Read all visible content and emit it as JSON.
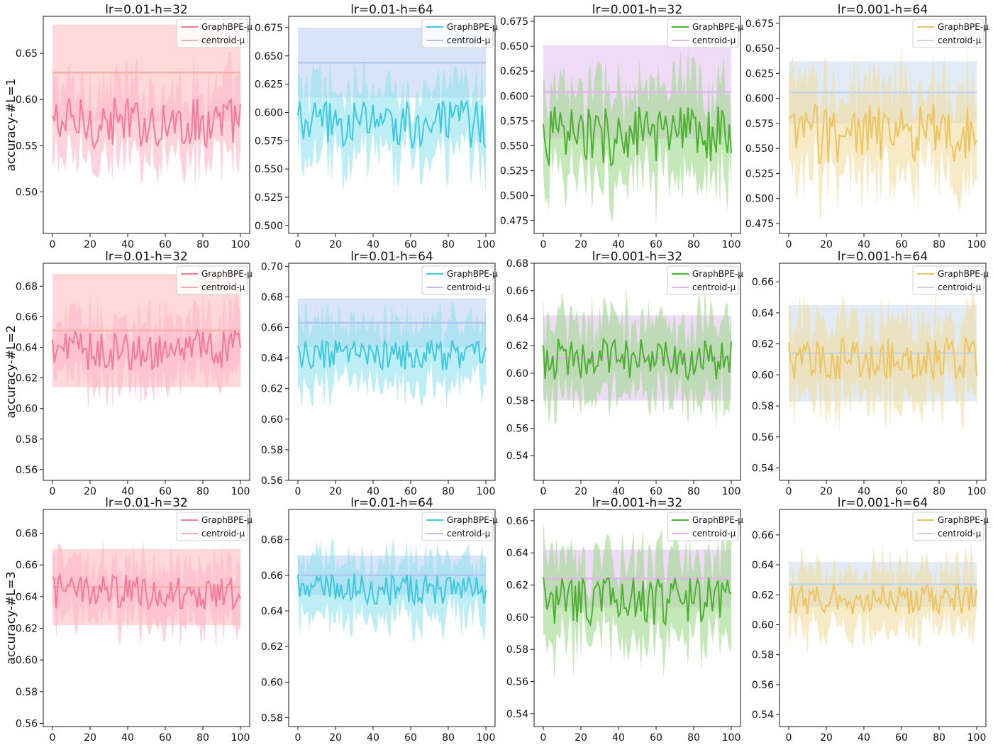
{
  "chart_data": {
    "type": "line",
    "description_rows": [
      "accuracy-#L=1",
      "accuracy-#L=2",
      "accuracy-#L=3"
    ],
    "columns": [
      "lr=0.01-h=32",
      "lr=0.01-h=64",
      "lr=0.001-h=32",
      "lr=0.001-h=64"
    ],
    "legend": [
      "GraphBPE-μ",
      "centroid-μ"
    ],
    "x_range": [
      0,
      100
    ],
    "x_ticks": [
      "0",
      "20",
      "40",
      "60",
      "80",
      "100"
    ],
    "colors": {
      "col0": {
        "line": "#f7799a",
        "band": "#ffb6c8",
        "centroid": "#f9aeae",
        "cband": "#ffc4c4"
      },
      "col1": {
        "line": "#40c8e0",
        "band": "#92e2ef",
        "centroid": "#b4c4f0",
        "cband": "#c4d6f4"
      },
      "col2": {
        "line": "#4cb030",
        "band": "#9fd98a",
        "centroid": "#e2b4ec",
        "cband": "#e6c8f2"
      },
      "col3": {
        "line": "#edc460",
        "band": "#f2dca0",
        "centroid": "#c2d6ea",
        "cband": "#cfe0f0"
      }
    },
    "panels": [
      {
        "row": 0,
        "col": 0,
        "title": "lr=0.01-h=32",
        "ylabel": "accuracy-#L=1",
        "ylim": [
          0.455,
          0.69
        ],
        "yticks": [
          "0.50",
          "0.55",
          "0.60",
          "0.65"
        ],
        "graphbpe_mean": 0.575,
        "graphbpe_amp": 0.028,
        "graphbpe_band": 0.038,
        "centroid_mean": 0.629,
        "centroid_std": 0.052
      },
      {
        "row": 0,
        "col": 1,
        "title": "lr=0.01-h=64",
        "ylabel": "",
        "ylim": [
          0.493,
          0.685
        ],
        "yticks": [
          "0.500",
          "0.525",
          "0.550",
          "0.575",
          "0.600",
          "0.625",
          "0.650",
          "0.675"
        ],
        "graphbpe_mean": 0.59,
        "graphbpe_amp": 0.022,
        "graphbpe_band": 0.03,
        "centroid_mean": 0.644,
        "centroid_std": 0.031
      },
      {
        "row": 0,
        "col": 2,
        "title": "lr=0.001-h=32",
        "ylabel": "",
        "ylim": [
          0.462,
          0.68
        ],
        "yticks": [
          "0.475",
          "0.500",
          "0.525",
          "0.550",
          "0.575",
          "0.600",
          "0.625",
          "0.650",
          "0.675"
        ],
        "graphbpe_mean": 0.56,
        "graphbpe_amp": 0.03,
        "graphbpe_band": 0.045,
        "centroid_mean": 0.604,
        "centroid_std": 0.047
      },
      {
        "row": 0,
        "col": 3,
        "title": "lr=0.001-h=64",
        "ylabel": "",
        "ylim": [
          0.465,
          0.682
        ],
        "yticks": [
          "0.475",
          "0.500",
          "0.525",
          "0.550",
          "0.575",
          "0.600",
          "0.625",
          "0.650",
          "0.675"
        ],
        "graphbpe_mean": 0.565,
        "graphbpe_amp": 0.03,
        "graphbpe_band": 0.045,
        "centroid_mean": 0.606,
        "centroid_std": 0.031
      },
      {
        "row": 1,
        "col": 0,
        "title": "lr=0.01-h=32",
        "ylabel": "accuracy-#L=2",
        "ylim": [
          0.553,
          0.695
        ],
        "yticks": [
          "0.56",
          "0.58",
          "0.60",
          "0.62",
          "0.64",
          "0.66",
          "0.68"
        ],
        "graphbpe_mean": 0.638,
        "graphbpe_amp": 0.013,
        "graphbpe_band": 0.02,
        "centroid_mean": 0.651,
        "centroid_std": 0.037
      },
      {
        "row": 1,
        "col": 1,
        "title": "lr=0.01-h=64",
        "ylabel": "",
        "ylim": [
          0.56,
          0.702
        ],
        "yticks": [
          "0.56",
          "0.58",
          "0.60",
          "0.62",
          "0.64",
          "0.66",
          "0.68",
          "0.70"
        ],
        "graphbpe_mean": 0.642,
        "graphbpe_amp": 0.01,
        "graphbpe_band": 0.02,
        "centroid_mean": 0.663,
        "centroid_std": 0.016
      },
      {
        "row": 1,
        "col": 2,
        "title": "lr=0.001-h=32",
        "ylabel": "",
        "ylim": [
          0.522,
          0.68
        ],
        "yticks": [
          "0.54",
          "0.56",
          "0.58",
          "0.60",
          "0.62",
          "0.64",
          "0.66",
          "0.68"
        ],
        "graphbpe_mean": 0.61,
        "graphbpe_amp": 0.015,
        "graphbpe_band": 0.028,
        "centroid_mean": 0.611,
        "centroid_std": 0.031
      },
      {
        "row": 1,
        "col": 3,
        "title": "lr=0.001-h=64",
        "ylabel": "",
        "ylim": [
          0.532,
          0.672
        ],
        "yticks": [
          "0.54",
          "0.56",
          "0.58",
          "0.60",
          "0.62",
          "0.64",
          "0.66"
        ],
        "graphbpe_mean": 0.61,
        "graphbpe_amp": 0.014,
        "graphbpe_band": 0.025,
        "centroid_mean": 0.614,
        "centroid_std": 0.031
      },
      {
        "row": 2,
        "col": 0,
        "title": "lr=0.01-h=32",
        "ylabel": "accuracy-#L=3",
        "ylim": [
          0.558,
          0.695
        ],
        "yticks": [
          "0.56",
          "0.58",
          "0.60",
          "0.62",
          "0.64",
          "0.66",
          "0.68"
        ],
        "graphbpe_mean": 0.643,
        "graphbpe_amp": 0.011,
        "graphbpe_band": 0.018,
        "centroid_mean": 0.646,
        "centroid_std": 0.024
      },
      {
        "row": 2,
        "col": 1,
        "title": "lr=0.01-h=64",
        "ylabel": "",
        "ylim": [
          0.575,
          0.697
        ],
        "yticks": [
          "0.58",
          "0.60",
          "0.62",
          "0.64",
          "0.66",
          "0.68"
        ],
        "graphbpe_mean": 0.652,
        "graphbpe_amp": 0.009,
        "graphbpe_band": 0.016,
        "centroid_mean": 0.66,
        "centroid_std": 0.011
      },
      {
        "row": 2,
        "col": 2,
        "title": "lr=0.001-h=32",
        "ylabel": "",
        "ylim": [
          0.532,
          0.667
        ],
        "yticks": [
          "0.54",
          "0.56",
          "0.58",
          "0.60",
          "0.62",
          "0.64",
          "0.66"
        ],
        "graphbpe_mean": 0.61,
        "graphbpe_amp": 0.015,
        "graphbpe_band": 0.025,
        "centroid_mean": 0.624,
        "centroid_std": 0.018
      },
      {
        "row": 2,
        "col": 3,
        "title": "lr=0.001-h=64",
        "ylabel": "",
        "ylim": [
          0.532,
          0.677
        ],
        "yticks": [
          "0.54",
          "0.56",
          "0.58",
          "0.60",
          "0.62",
          "0.64",
          "0.66"
        ],
        "graphbpe_mean": 0.617,
        "graphbpe_amp": 0.01,
        "graphbpe_band": 0.02,
        "centroid_mean": 0.627,
        "centroid_std": 0.015
      }
    ]
  }
}
